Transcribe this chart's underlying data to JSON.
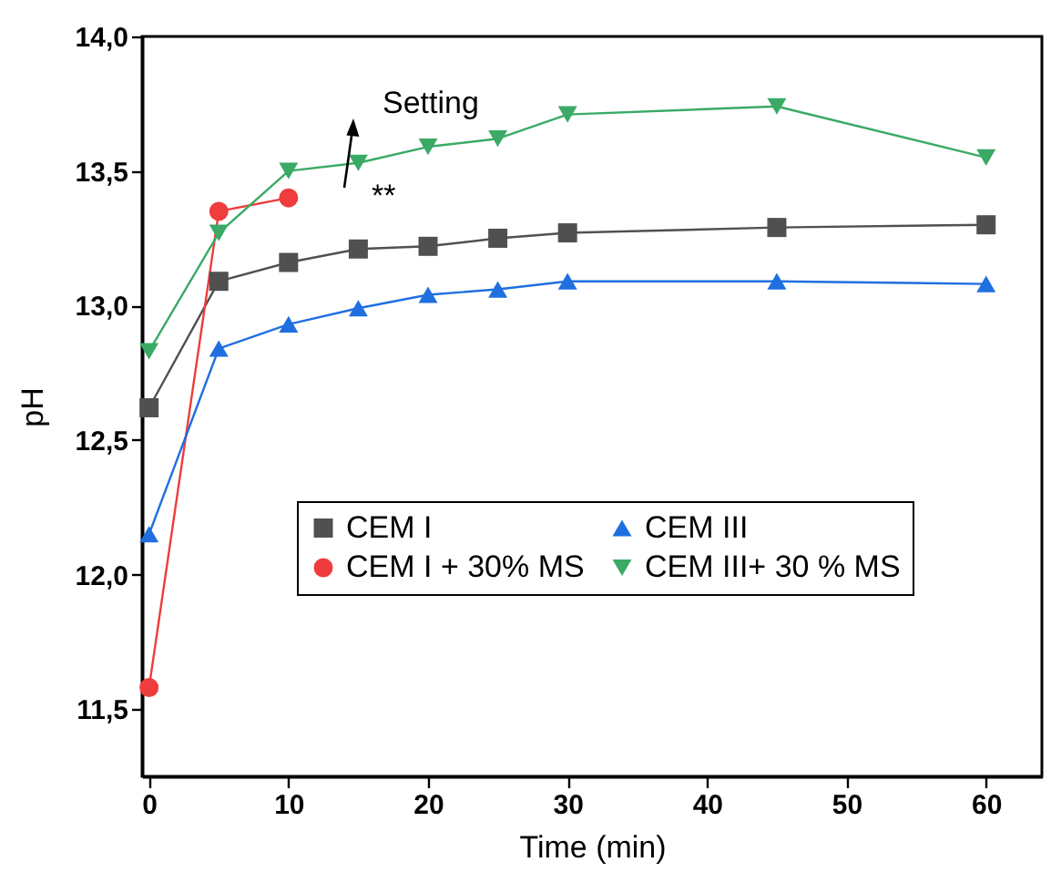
{
  "chart_data": {
    "type": "line",
    "xlabel": "Time (min)",
    "ylabel": "pH",
    "xlim": [
      -0.5,
      64
    ],
    "xticks": [
      0,
      10,
      20,
      30,
      40,
      50,
      60
    ],
    "ylim": [
      11.25,
      14.0
    ],
    "yticks": [
      {
        "value": 11.5,
        "label": "11,5"
      },
      {
        "value": 12.0,
        "label": "12,0"
      },
      {
        "value": 12.5,
        "label": "12,5"
      },
      {
        "value": 13.0,
        "label": "13,0"
      },
      {
        "value": 13.5,
        "label": "13,5"
      },
      {
        "value": 14.0,
        "label": "14,0"
      }
    ],
    "grid": false,
    "legend": "bottom right",
    "annotations": [
      "Setting",
      "**"
    ],
    "series": [
      {
        "name": "CEM I",
        "color": "#505050",
        "marker": "square",
        "x": [
          0,
          5,
          10,
          15,
          20,
          25,
          30,
          45,
          60
        ],
        "values": [
          12.62,
          13.09,
          13.16,
          13.21,
          13.22,
          13.25,
          13.27,
          13.29,
          13.3
        ]
      },
      {
        "name": "CEM I + 30% MS",
        "color": "#ef3c3c",
        "marker": "circle",
        "x": [
          0,
          5,
          10
        ],
        "values": [
          11.58,
          13.35,
          13.4
        ]
      },
      {
        "name": "CEM III",
        "color": "#1f6fe0",
        "marker": "triangle",
        "x": [
          0,
          5,
          10,
          15,
          20,
          25,
          30,
          45,
          60
        ],
        "values": [
          12.15,
          12.84,
          12.93,
          12.99,
          13.04,
          13.06,
          13.09,
          13.09,
          13.08
        ]
      },
      {
        "name": "CEM III+ 30 % MS",
        "color": "#3aaa66",
        "marker": "triangle-down",
        "x": [
          0,
          5,
          10,
          15,
          20,
          25,
          30,
          45,
          60
        ],
        "values": [
          12.83,
          13.27,
          13.5,
          13.53,
          13.59,
          13.62,
          13.71,
          13.74,
          13.55
        ]
      }
    ]
  }
}
